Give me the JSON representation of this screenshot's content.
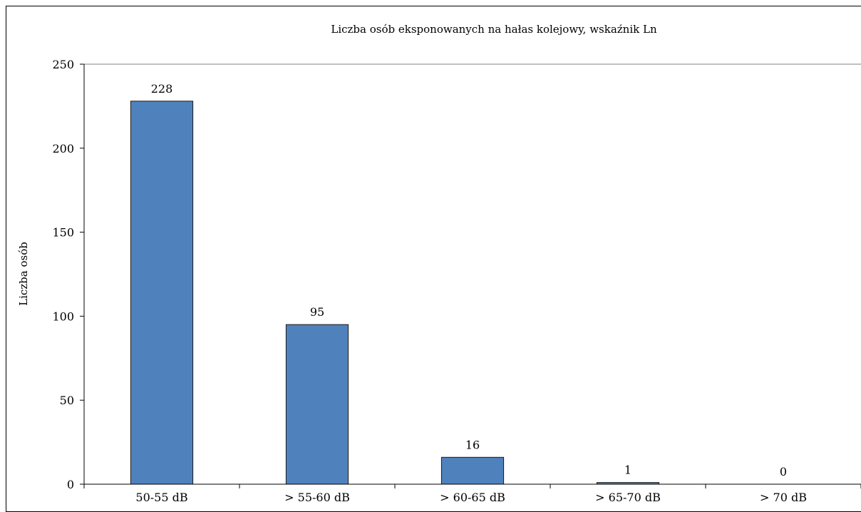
{
  "chart_data": {
    "type": "bar",
    "title": "Liczba osób eksponowanych na hałas kolejowy, wskaźnik Ln",
    "xlabel": "",
    "ylabel": "Liczba osób",
    "categories": [
      "50-55 dB",
      "> 55-60 dB",
      "> 60-65 dB",
      "> 65-70 dB",
      "> 70 dB"
    ],
    "values": [
      228,
      95,
      16,
      1,
      0
    ],
    "data_labels": [
      "228",
      "95",
      "16",
      "1",
      "0"
    ],
    "ylim": [
      0,
      250
    ],
    "yticks": [
      0,
      50,
      100,
      150,
      200,
      250
    ],
    "grid": "major horizontal line at 250 only",
    "legend": "none",
    "colors": {
      "bar_fill": "#4f81bd",
      "bar_stroke": "#1a1a1a",
      "axis": "#000000",
      "gridline": "#808080"
    }
  }
}
